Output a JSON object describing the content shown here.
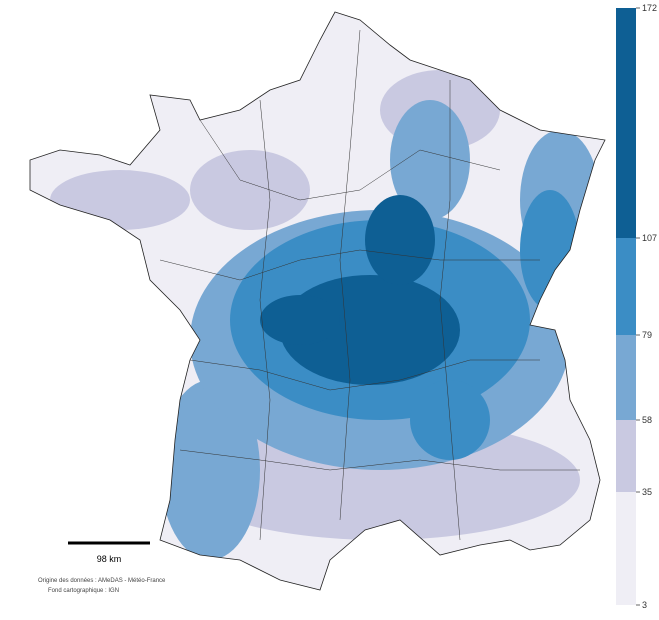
{
  "legend": {
    "breaks": [
      3,
      35,
      58,
      79,
      107,
      172
    ],
    "colors": [
      "#efeef5",
      "#c9c9e1",
      "#78a8d3",
      "#3b8dc5",
      "#0e5f94"
    ]
  },
  "scale_bar": {
    "label": "98 km"
  },
  "credits": [
    "Origine des données : AMeDAS - Météo-France",
    "Fond cartographique : IGN"
  ]
}
